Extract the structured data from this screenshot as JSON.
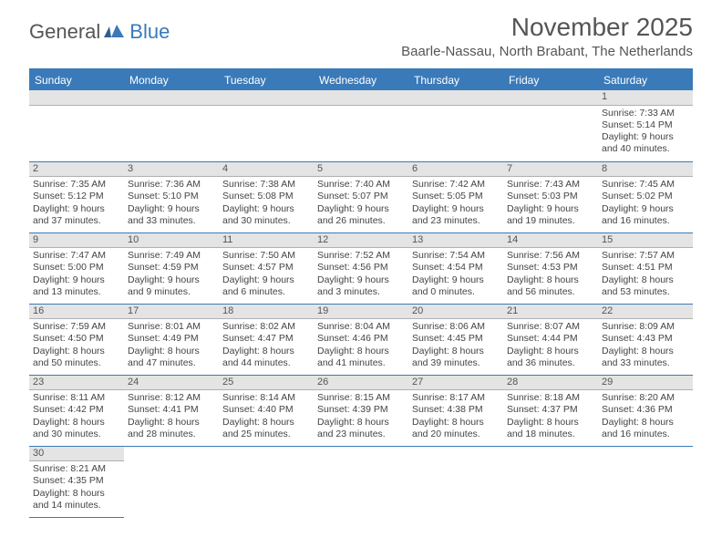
{
  "logo": {
    "text1": "General",
    "text2": "Blue"
  },
  "title": "November 2025",
  "location": "Baarle-Nassau, North Brabant, The Netherlands",
  "colors": {
    "header_bg": "#3a7ab8",
    "header_text": "#ffffff",
    "divider": "#3a7ab8",
    "daynum_bg": "#e4e4e4",
    "cell_border": "#3a7ab8",
    "text": "#444444",
    "title_text": "#555555"
  },
  "weekdays": [
    "Sunday",
    "Monday",
    "Tuesday",
    "Wednesday",
    "Thursday",
    "Friday",
    "Saturday"
  ],
  "days": {
    "1": {
      "sunrise": "7:33 AM",
      "sunset": "5:14 PM",
      "daylight": "9 hours and 40 minutes."
    },
    "2": {
      "sunrise": "7:35 AM",
      "sunset": "5:12 PM",
      "daylight": "9 hours and 37 minutes."
    },
    "3": {
      "sunrise": "7:36 AM",
      "sunset": "5:10 PM",
      "daylight": "9 hours and 33 minutes."
    },
    "4": {
      "sunrise": "7:38 AM",
      "sunset": "5:08 PM",
      "daylight": "9 hours and 30 minutes."
    },
    "5": {
      "sunrise": "7:40 AM",
      "sunset": "5:07 PM",
      "daylight": "9 hours and 26 minutes."
    },
    "6": {
      "sunrise": "7:42 AM",
      "sunset": "5:05 PM",
      "daylight": "9 hours and 23 minutes."
    },
    "7": {
      "sunrise": "7:43 AM",
      "sunset": "5:03 PM",
      "daylight": "9 hours and 19 minutes."
    },
    "8": {
      "sunrise": "7:45 AM",
      "sunset": "5:02 PM",
      "daylight": "9 hours and 16 minutes."
    },
    "9": {
      "sunrise": "7:47 AM",
      "sunset": "5:00 PM",
      "daylight": "9 hours and 13 minutes."
    },
    "10": {
      "sunrise": "7:49 AM",
      "sunset": "4:59 PM",
      "daylight": "9 hours and 9 minutes."
    },
    "11": {
      "sunrise": "7:50 AM",
      "sunset": "4:57 PM",
      "daylight": "9 hours and 6 minutes."
    },
    "12": {
      "sunrise": "7:52 AM",
      "sunset": "4:56 PM",
      "daylight": "9 hours and 3 minutes."
    },
    "13": {
      "sunrise": "7:54 AM",
      "sunset": "4:54 PM",
      "daylight": "9 hours and 0 minutes."
    },
    "14": {
      "sunrise": "7:56 AM",
      "sunset": "4:53 PM",
      "daylight": "8 hours and 56 minutes."
    },
    "15": {
      "sunrise": "7:57 AM",
      "sunset": "4:51 PM",
      "daylight": "8 hours and 53 minutes."
    },
    "16": {
      "sunrise": "7:59 AM",
      "sunset": "4:50 PM",
      "daylight": "8 hours and 50 minutes."
    },
    "17": {
      "sunrise": "8:01 AM",
      "sunset": "4:49 PM",
      "daylight": "8 hours and 47 minutes."
    },
    "18": {
      "sunrise": "8:02 AM",
      "sunset": "4:47 PM",
      "daylight": "8 hours and 44 minutes."
    },
    "19": {
      "sunrise": "8:04 AM",
      "sunset": "4:46 PM",
      "daylight": "8 hours and 41 minutes."
    },
    "20": {
      "sunrise": "8:06 AM",
      "sunset": "4:45 PM",
      "daylight": "8 hours and 39 minutes."
    },
    "21": {
      "sunrise": "8:07 AM",
      "sunset": "4:44 PM",
      "daylight": "8 hours and 36 minutes."
    },
    "22": {
      "sunrise": "8:09 AM",
      "sunset": "4:43 PM",
      "daylight": "8 hours and 33 minutes."
    },
    "23": {
      "sunrise": "8:11 AM",
      "sunset": "4:42 PM",
      "daylight": "8 hours and 30 minutes."
    },
    "24": {
      "sunrise": "8:12 AM",
      "sunset": "4:41 PM",
      "daylight": "8 hours and 28 minutes."
    },
    "25": {
      "sunrise": "8:14 AM",
      "sunset": "4:40 PM",
      "daylight": "8 hours and 25 minutes."
    },
    "26": {
      "sunrise": "8:15 AM",
      "sunset": "4:39 PM",
      "daylight": "8 hours and 23 minutes."
    },
    "27": {
      "sunrise": "8:17 AM",
      "sunset": "4:38 PM",
      "daylight": "8 hours and 20 minutes."
    },
    "28": {
      "sunrise": "8:18 AM",
      "sunset": "4:37 PM",
      "daylight": "8 hours and 18 minutes."
    },
    "29": {
      "sunrise": "8:20 AM",
      "sunset": "4:36 PM",
      "daylight": "8 hours and 16 minutes."
    },
    "30": {
      "sunrise": "8:21 AM",
      "sunset": "4:35 PM",
      "daylight": "8 hours and 14 minutes."
    }
  },
  "labels": {
    "sunrise": "Sunrise:",
    "sunset": "Sunset:",
    "daylight": "Daylight:"
  },
  "grid": {
    "first_weekday_index": 6,
    "num_days": 30
  }
}
